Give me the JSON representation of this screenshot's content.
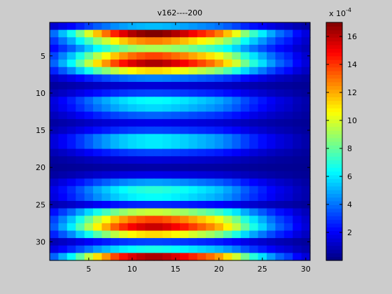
{
  "figure": {
    "background": "#cccccc"
  },
  "chart_data": {
    "type": "heatmap",
    "title": "v162----200",
    "xlabel": "",
    "ylabel": "",
    "colormap": "jet",
    "grid": false,
    "x_range": [
      0.5,
      30.5
    ],
    "y_range": [
      0.5,
      32.5
    ],
    "y_direction": "down",
    "x_ticks": [
      5,
      10,
      15,
      20,
      25,
      30
    ],
    "y_ticks": [
      5,
      10,
      15,
      20,
      25,
      30
    ],
    "colorbar": {
      "label": "x 10",
      "exponent": "-4",
      "range": [
        0.0,
        17.0
      ],
      "ticks": [
        2,
        4,
        6,
        8,
        10,
        12,
        14,
        16
      ]
    },
    "x_profile": [
      0.22,
      0.3,
      0.38,
      0.48,
      0.58,
      0.68,
      0.76,
      0.84,
      0.9,
      0.95,
      0.98,
      1.0,
      1.0,
      0.98,
      0.95,
      0.92,
      0.88,
      0.84,
      0.8,
      0.75,
      0.68,
      0.6,
      0.5,
      0.42,
      0.35,
      0.28,
      0.22,
      0.18,
      0.12,
      0.08
    ],
    "row_peaks": [
      5.0,
      16.8,
      12.5,
      9.0,
      13.5,
      16.0,
      11.0,
      4.0,
      1.2,
      3.0,
      6.2,
      5.5,
      3.5,
      1.5,
      3.0,
      5.8,
      5.8,
      3.0,
      1.2,
      0.4,
      1.5,
      4.5,
      6.8,
      6.2,
      2.5,
      9.5,
      13.5,
      15.5,
      11.0,
      3.0,
      6.5,
      16.0
    ],
    "values": []
  }
}
